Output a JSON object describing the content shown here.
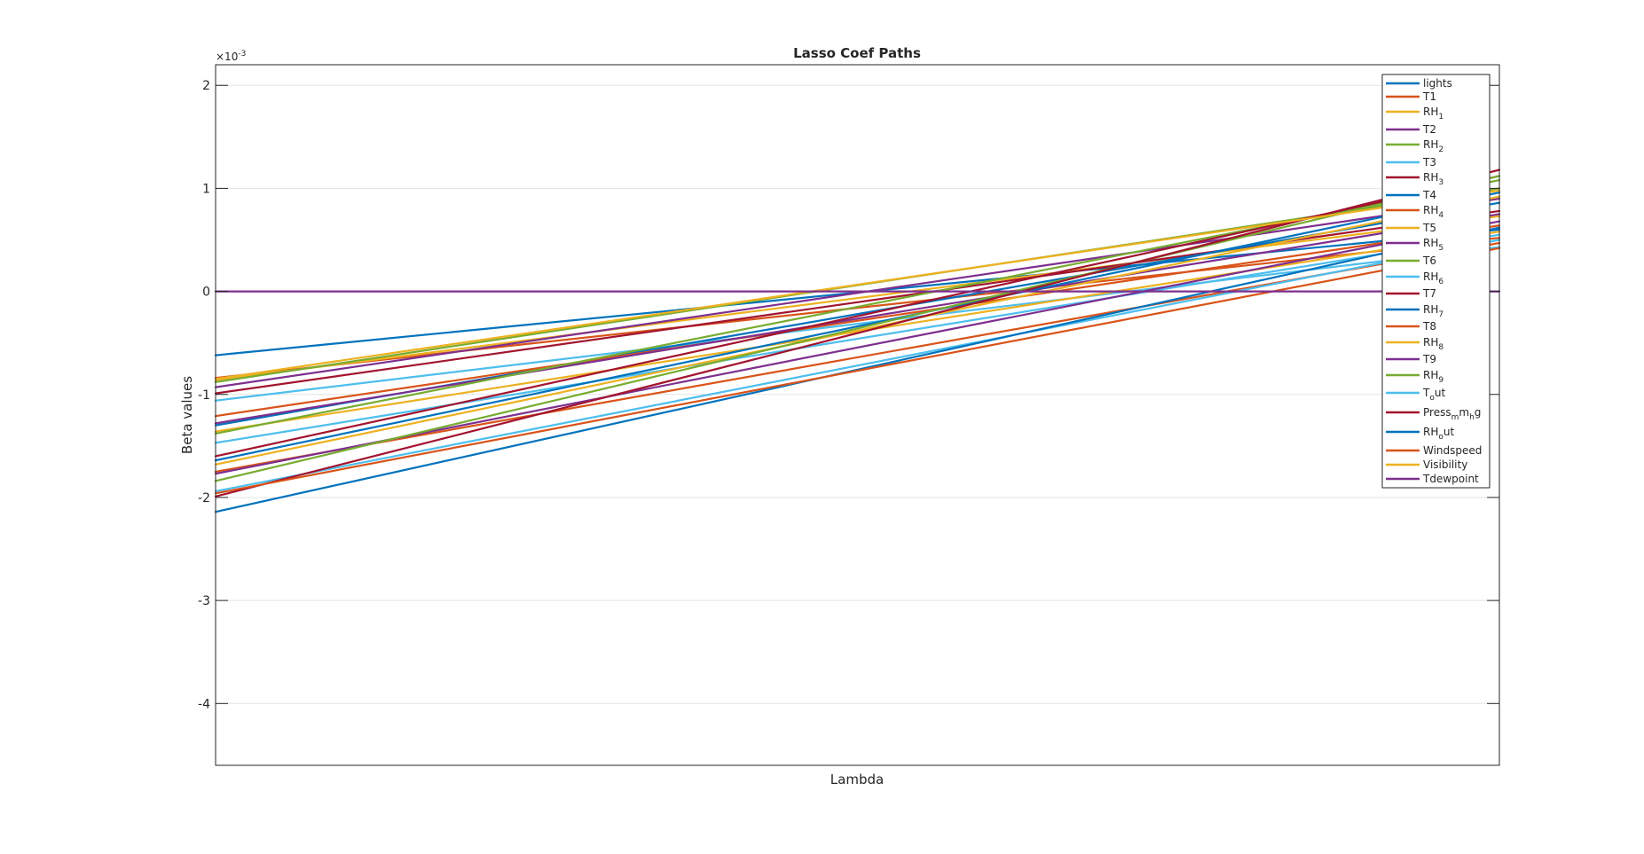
{
  "chart_data": {
    "type": "line",
    "title": "Lasso Coef Paths",
    "xlabel": "Lambda",
    "ylabel": "Beta values",
    "y_exponent_label": "×10",
    "y_exponent_power": "-3",
    "ylim": [
      -4.6,
      2.2
    ],
    "yticks": [
      2,
      1,
      0,
      -1,
      -2,
      -3,
      -4
    ],
    "ytick_labels": [
      "2",
      "1",
      "0",
      "-1",
      "-2",
      "-3",
      "-4"
    ],
    "x_has_tick_labels": false,
    "grid": "y",
    "legend_position": "top-right",
    "series": [
      {
        "name": "lights",
        "label": "lights",
        "color": "#0072BD",
        "values": [
          -0.62,
          0.6
        ]
      },
      {
        "name": "T1",
        "label": "T1",
        "color": "#D95319",
        "values": [
          -0.84,
          0.52
        ]
      },
      {
        "name": "RH_1",
        "label": "RH",
        "sub": "1",
        "color": "#EDB120",
        "values": [
          -0.86,
          0.73
        ]
      },
      {
        "name": "T2",
        "label": "T2",
        "color": "#7E2F8E",
        "values": [
          -0.93,
          0.9
        ]
      },
      {
        "name": "RH_2",
        "label": "RH",
        "sub": "2",
        "color": "#77AC30",
        "values": [
          -0.88,
          1.0
        ]
      },
      {
        "name": "T3",
        "label": "T3",
        "color": "#4DBEEE",
        "values": [
          -1.06,
          0.43
        ]
      },
      {
        "name": "RH_3",
        "label": "RH",
        "sub": "3",
        "color": "#A2142F",
        "values": [
          -0.99,
          0.78
        ]
      },
      {
        "name": "T4",
        "label": "T4",
        "color": "#0072BD",
        "values": [
          -1.3,
          0.86
        ]
      },
      {
        "name": "RH_4",
        "label": "RH",
        "sub": "4",
        "color": "#D95319",
        "values": [
          -1.21,
          0.64
        ]
      },
      {
        "name": "T5",
        "label": "T5",
        "color": "#EDB120",
        "values": [
          -1.36,
          0.58
        ]
      },
      {
        "name": "RH_5",
        "label": "RH",
        "sub": "5",
        "color": "#7E2F8E",
        "values": [
          -1.28,
          0.75
        ]
      },
      {
        "name": "T6",
        "label": "T6",
        "color": "#77AC30",
        "values": [
          -1.38,
          1.08
        ]
      },
      {
        "name": "RH_6",
        "label": "RH",
        "sub": "6",
        "color": "#4DBEEE",
        "values": [
          -1.47,
          0.55
        ]
      },
      {
        "name": "T7",
        "label": "T7",
        "color": "#A2142F",
        "values": [
          -1.6,
          1.12
        ]
      },
      {
        "name": "RH_7",
        "label": "RH",
        "sub": "7",
        "color": "#0072BD",
        "values": [
          -1.64,
          0.96
        ]
      },
      {
        "name": "T8",
        "label": "T8",
        "color": "#D95319",
        "values": [
          -1.75,
          0.47
        ]
      },
      {
        "name": "RH_8",
        "label": "RH",
        "sub": "8",
        "color": "#EDB120",
        "values": [
          -1.68,
          0.92
        ]
      },
      {
        "name": "T9",
        "label": "T9",
        "color": "#7E2F8E",
        "values": [
          -1.77,
          0.68
        ]
      },
      {
        "name": "RH_9",
        "label": "RH",
        "sub": "9",
        "color": "#77AC30",
        "values": [
          -1.84,
          1.12
        ]
      },
      {
        "name": "T_out",
        "label": "T",
        "sub": "o",
        "tail": "ut",
        "color": "#4DBEEE",
        "values": [
          -1.94,
          0.5
        ]
      },
      {
        "name": "Press_mm_hg",
        "label": "Press",
        "parts": [
          [
            "sub",
            "m"
          ],
          [
            "txt",
            "m"
          ],
          [
            "sub",
            "h"
          ],
          [
            "txt",
            "g"
          ]
        ],
        "color": "#A2142F",
        "values": [
          -1.99,
          1.18
        ]
      },
      {
        "name": "RH_out",
        "label": "RH",
        "sub": "o",
        "tail": "ut",
        "color": "#0072BD",
        "values": [
          -2.14,
          0.62
        ]
      },
      {
        "name": "Windspeed",
        "label": "Windspeed",
        "color": "#D95319",
        "values": [
          -1.96,
          0.42
        ]
      },
      {
        "name": "Visibility",
        "label": "Visibility",
        "color": "#EDB120",
        "values": [
          -0.85,
          0.98
        ]
      },
      {
        "name": "Tdewpoint",
        "label": "Tdewpoint",
        "color": "#7E2F8E",
        "values": [
          0,
          0
        ]
      }
    ]
  }
}
